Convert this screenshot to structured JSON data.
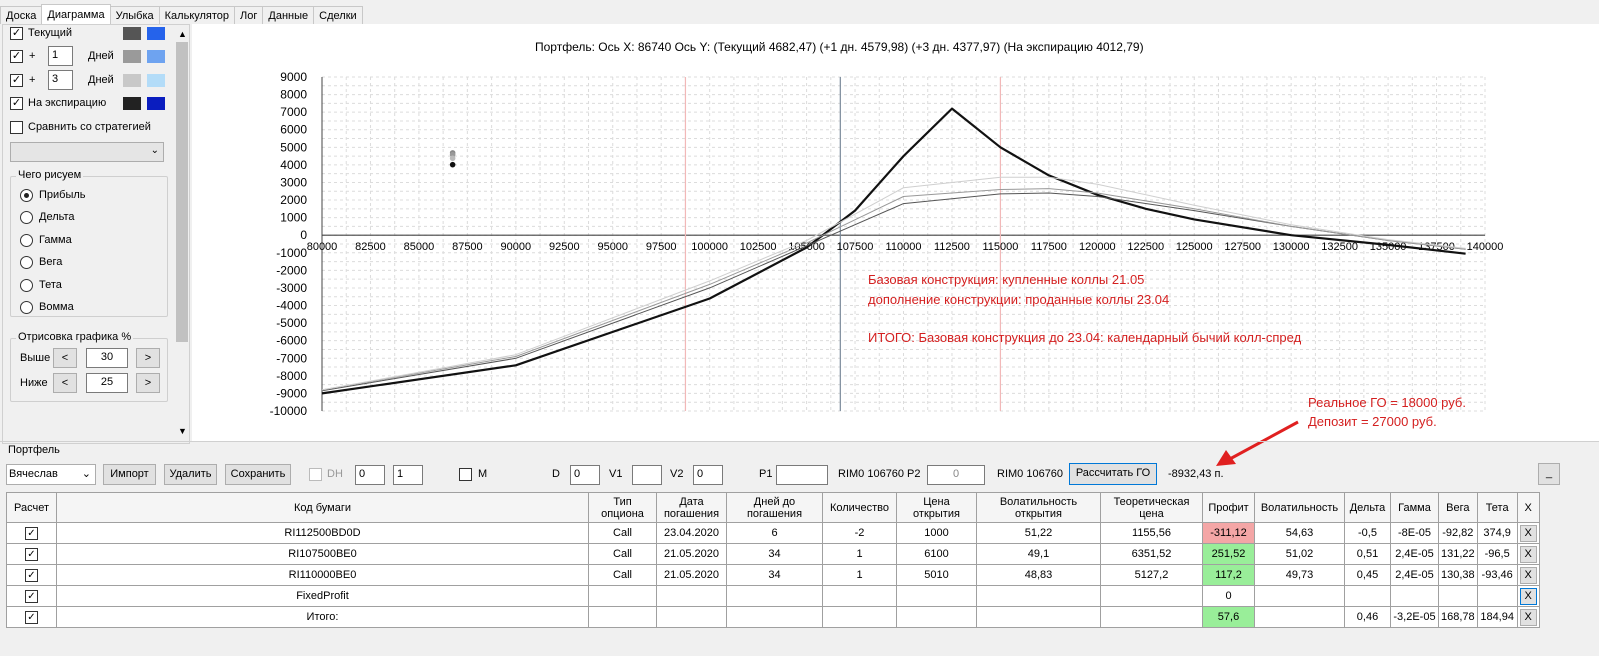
{
  "tabs": [
    "Доска",
    "Диаграмма",
    "Улыбка",
    "Калькулятор",
    "Лог",
    "Данные",
    "Сделки"
  ],
  "left": {
    "current_label": "Текущий",
    "plus": "+",
    "days_label": "Дней",
    "day1": "1",
    "day3": "3",
    "expiration_label": "На экспирацию",
    "compare_label": "Сравнить со стратегией",
    "what_draw_title": "Чего рисуем",
    "radios": [
      "Прибыль",
      "Дельта",
      "Гамма",
      "Вега",
      "Тета",
      "Вомма"
    ],
    "render_title": "Отрисовка графика %",
    "above_label": "Выше",
    "above_value": "30",
    "below_label": "Ниже",
    "below_value": "25",
    "lt": "<",
    "gt": ">",
    "colors": {
      "current": [
        "#555555",
        "#2563eb"
      ],
      "d1": [
        "#9a9a9a",
        "#6ea3f0"
      ],
      "d3": [
        "#c8c8c8",
        "#b3dcf8"
      ],
      "exp": [
        "#222222",
        "#0a1dbf"
      ]
    }
  },
  "chart": {
    "title": "Портфель: Ось X: 86740 Ось Y:  (Текущий 4682,47)  (+1 дн. 4579,98)  (+3 дн. 4377,97)  (На экспирацию 4012,79)",
    "yticks": [
      "9000",
      "8000",
      "7000",
      "6000",
      "5000",
      "4000",
      "3000",
      "2000",
      "1000",
      "0",
      "-1000",
      "-2000",
      "-3000",
      "-4000",
      "-5000",
      "-6000",
      "-7000",
      "-8000",
      "-9000",
      "-10000"
    ],
    "xticks": [
      "80000",
      "82500",
      "85000",
      "87500",
      "90000",
      "92500",
      "95000",
      "97500",
      "100000",
      "102500",
      "105000",
      "107500",
      "110000",
      "112500",
      "115000",
      "117500",
      "120000",
      "122500",
      "125000",
      "127500",
      "130000",
      "132500",
      "135000",
      "137500",
      "140000"
    ],
    "annotation1": "Базовая конструкция: купленные коллы 21.05",
    "annotation2": "дополнение конструкции: проданные коллы 23.04",
    "annotation3": "ИТОГО: Базовая конструкция до 23.04:  календарный бычий колл-спред",
    "annotation4": "Реальное ГО = 18000 руб.",
    "annotation5": "Депозит = 27000 руб."
  },
  "chart_data": {
    "type": "line",
    "xlim": [
      80000,
      140000
    ],
    "ylim": [
      -10000,
      9000
    ],
    "xlabel": "",
    "ylabel": "",
    "series": [
      {
        "points": [
          [
            80000,
            -9000
          ],
          [
            90000,
            -7400
          ],
          [
            100000,
            -3600
          ],
          [
            105000,
            -700
          ],
          [
            107500,
            1400
          ],
          [
            110000,
            4500
          ],
          [
            112500,
            7200
          ],
          [
            115000,
            5000
          ],
          [
            117500,
            3400
          ],
          [
            120000,
            2300
          ],
          [
            122500,
            1500
          ],
          [
            125000,
            900
          ],
          [
            130000,
            0
          ],
          [
            135000,
            -550
          ],
          [
            139000,
            -1050
          ]
        ]
      },
      {
        "points": [
          [
            80000,
            -8850
          ],
          [
            90000,
            -7000
          ],
          [
            100000,
            -3000
          ],
          [
            105000,
            -600
          ],
          [
            110000,
            1800
          ],
          [
            115000,
            2350
          ],
          [
            117500,
            2400
          ],
          [
            120000,
            2200
          ],
          [
            125000,
            1400
          ],
          [
            130000,
            500
          ],
          [
            135000,
            -300
          ],
          [
            139000,
            -800
          ]
        ]
      },
      {
        "points": [
          [
            80000,
            -8800
          ],
          [
            90000,
            -6900
          ],
          [
            100000,
            -2800
          ],
          [
            105000,
            -450
          ],
          [
            110000,
            2200
          ],
          [
            115000,
            2600
          ],
          [
            117500,
            2650
          ],
          [
            120000,
            2400
          ],
          [
            125000,
            1500
          ],
          [
            130000,
            500
          ],
          [
            135000,
            -300
          ],
          [
            139000,
            -800
          ]
        ]
      },
      {
        "points": [
          [
            80000,
            -8800
          ],
          [
            90000,
            -6800
          ],
          [
            100000,
            -2600
          ],
          [
            105000,
            -300
          ],
          [
            110000,
            2700
          ],
          [
            115000,
            3300
          ],
          [
            117500,
            3300
          ],
          [
            120000,
            2900
          ],
          [
            125000,
            1700
          ],
          [
            130000,
            600
          ],
          [
            135000,
            -250
          ],
          [
            139000,
            -750
          ]
        ]
      }
    ],
    "markers": [
      [
        86740,
        4682.47
      ],
      [
        86740,
        4579.98
      ],
      [
        86740,
        4377.97
      ],
      [
        86740,
        4012.79
      ]
    ],
    "vlines": [
      {
        "x": 98750,
        "color": "#f2b8b8"
      },
      {
        "x": 106740,
        "color": "#7a8a9a"
      },
      {
        "x": 115000,
        "color": "#f2b8b8"
      }
    ]
  },
  "portfolio": {
    "label": "Портфель",
    "user": "Вячеслав",
    "import": "Импорт",
    "delete": "Удалить",
    "save": "Сохранить",
    "dh": "DH",
    "dh1": "0",
    "dh2": "1",
    "m": "M",
    "d_label": "D",
    "d_val": "0",
    "v1_label": "V1",
    "v1_val": "",
    "v2_label": "V2",
    "v2_val": "0",
    "p1_label": "P1",
    "p1_val": "",
    "rim1": "RIM0 106760",
    "p2_label": "P2",
    "p2_val": "0",
    "rim2": "RIM0 106760",
    "calc": "Рассчитать ГО",
    "go_value": "-8932,43 п.",
    "minimize": "_"
  },
  "table": {
    "headers": [
      "Расчет",
      "Код бумаги",
      "Тип опциона",
      "Дата погашения",
      "Дней до погашения",
      "Количество",
      "Цена открытия",
      "Волатильность открытия",
      "Теоретическая цена",
      "Профит",
      "Волатильность",
      "Дельта",
      "Гамма",
      "Вега",
      "Тета",
      "X"
    ],
    "rows": [
      [
        "✓",
        "RI112500BD0D",
        "Call",
        "23.04.2020",
        "6",
        "-2",
        "1000",
        "51,22",
        "1155,56",
        "-311,12",
        "54,63",
        "-0,5",
        "-8E-05",
        "-92,82",
        "374,9",
        "X"
      ],
      [
        "✓",
        "RI107500BE0",
        "Call",
        "21.05.2020",
        "34",
        "1",
        "6100",
        "49,1",
        "6351,52",
        "251,52",
        "51,02",
        "0,51",
        "2,4E-05",
        "131,22",
        "-96,5",
        "X"
      ],
      [
        "✓",
        "RI110000BE0",
        "Call",
        "21.05.2020",
        "34",
        "1",
        "5010",
        "48,83",
        "5127,2",
        "117,2",
        "49,73",
        "0,45",
        "2,4E-05",
        "130,38",
        "-93,46",
        "X"
      ],
      [
        "✓",
        "FixedProfit",
        "",
        "",
        "",
        "",
        "",
        "",
        "",
        "0",
        "",
        "",
        "",
        "",
        "",
        "X"
      ],
      [
        "✓",
        "Итого:",
        "",
        "",
        "",
        "",
        "",
        "",
        "",
        "57,6",
        "",
        "0,46",
        "-3,2E-05",
        "168,78",
        "184,94",
        "X"
      ]
    ]
  }
}
